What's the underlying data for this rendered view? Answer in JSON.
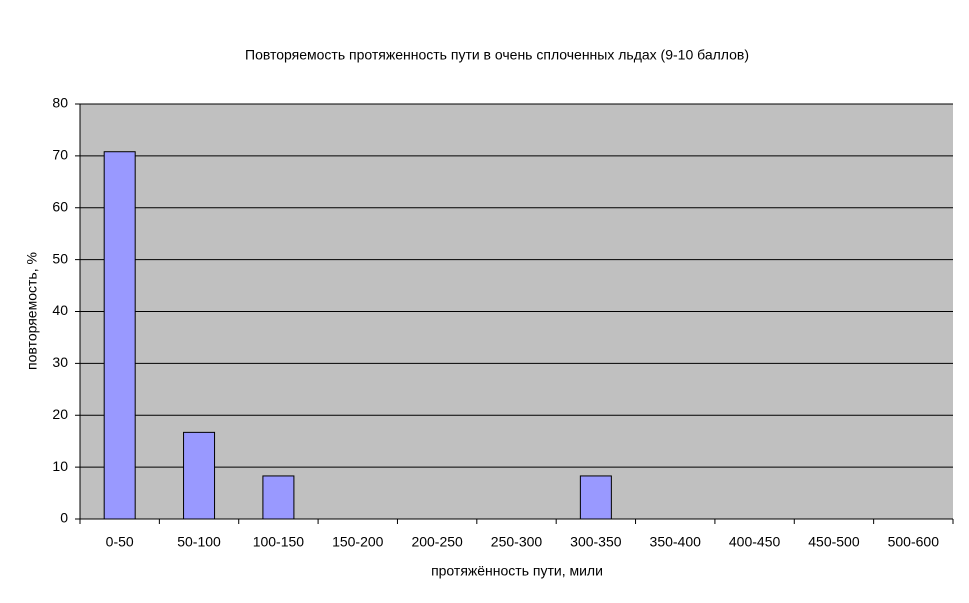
{
  "chart_data": {
    "type": "bar",
    "title": "Повторяемость протяженность пути в очень сплоченных льдах (9-10 баллов)",
    "x_label": "протяжённость пути, мили",
    "y_label": "повторяемость, %",
    "categories": [
      "0-50",
      "50-100",
      "100-150",
      "150-200",
      "200-250",
      "250-300",
      "300-350",
      "350-400",
      "400-450",
      "450-500",
      "500-600"
    ],
    "values": [
      70.8,
      16.7,
      8.3,
      0,
      0,
      0,
      8.3,
      0,
      0,
      0,
      0
    ],
    "color": "#9999ff",
    "ylim": [
      0,
      80
    ],
    "yticks": [
      0,
      10,
      20,
      30,
      40,
      50,
      60,
      70,
      80
    ],
    "grid": true
  }
}
